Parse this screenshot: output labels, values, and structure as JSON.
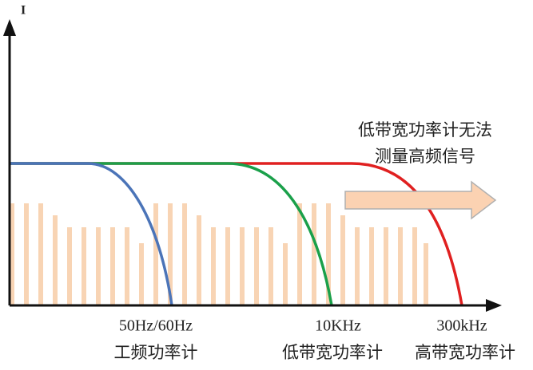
{
  "axis": {
    "y_label": "I"
  },
  "frequency_labels": [
    "50Hz/60Hz",
    "10KHz",
    "300kHz"
  ],
  "meters": [
    "工频功率计",
    "低带宽功率计",
    "高带宽功率计"
  ],
  "note": {
    "lines": [
      "低带宽功率计无法",
      "测量高频信号"
    ]
  }
}
